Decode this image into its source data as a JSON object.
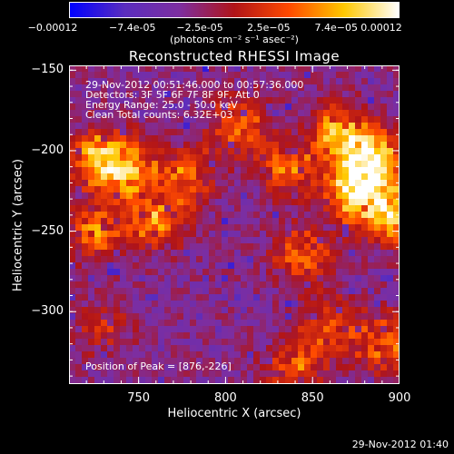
{
  "chart_data": {
    "type": "heatmap",
    "title": "Reconstructed RHESSI Image",
    "xlabel": "Heliocentric X (arcsec)",
    "ylabel": "Heliocentric Y (arcsec)",
    "xlim": [
      710,
      900
    ],
    "ylim": [
      -345,
      -147
    ],
    "xticks": [
      "750",
      "800",
      "850",
      "900"
    ],
    "xtick_values": [
      750,
      800,
      850,
      900
    ],
    "yticks": [
      "-150",
      "-200",
      "-250",
      "-300"
    ],
    "ytick_values": [
      -150,
      -200,
      -250,
      -300
    ],
    "colorbar": {
      "range": [
        -0.00012,
        0.00012
      ],
      "tick_labels": [
        "-0.00012",
        "-7.4e-05",
        "-2.5e-05",
        "2.5e-05",
        "7.4e-05",
        "0.00012"
      ],
      "tick_values": [
        -0.00012,
        -7.4e-05,
        -2.5e-05,
        2.5e-05,
        7.4e-05,
        0.00012
      ],
      "unit_label": "(photons cm⁻² s⁻¹ asec⁻²)",
      "colormap": [
        "#0000ff",
        "#5a2dbe",
        "#7d2ea0",
        "#b01418",
        "#ff4a00",
        "#ffc800",
        "#ffffff"
      ]
    },
    "peak": {
      "x": 876,
      "y": -226
    },
    "bright_regions": [
      {
        "x": 728,
        "y": -205,
        "level": 0.8
      },
      {
        "x": 745,
        "y": -212,
        "level": 0.7
      },
      {
        "x": 726,
        "y": -250,
        "level": 0.6
      },
      {
        "x": 760,
        "y": -242,
        "level": 0.65
      },
      {
        "x": 778,
        "y": -215,
        "level": 0.55
      },
      {
        "x": 808,
        "y": -185,
        "level": 0.6
      },
      {
        "x": 838,
        "y": -212,
        "level": 0.6
      },
      {
        "x": 866,
        "y": -190,
        "level": 0.8
      },
      {
        "x": 885,
        "y": -205,
        "level": 0.95
      },
      {
        "x": 876,
        "y": -226,
        "level": 1.0
      },
      {
        "x": 895,
        "y": -240,
        "level": 0.85
      },
      {
        "x": 845,
        "y": -265,
        "level": 0.55
      },
      {
        "x": 860,
        "y": -310,
        "level": 0.5
      },
      {
        "x": 892,
        "y": -320,
        "level": 0.6
      },
      {
        "x": 840,
        "y": -335,
        "level": 0.5
      },
      {
        "x": 730,
        "y": -310,
        "level": 0.3
      }
    ],
    "annotations": {
      "time_range": "29-Nov-2012 00:51:46.000 to 00:57:36.000",
      "detectors": "Detectors: 3F 5F 6F 7F 8F 9F, Att 0",
      "energy": "Energy Range: 25.0 - 50.0 keV",
      "clean": "Clean     Total counts: 6.32E+03",
      "peak_label": "Position of Peak = [876,-226]"
    }
  },
  "footer": {
    "timestamp": "29-Nov-2012 01:40"
  }
}
